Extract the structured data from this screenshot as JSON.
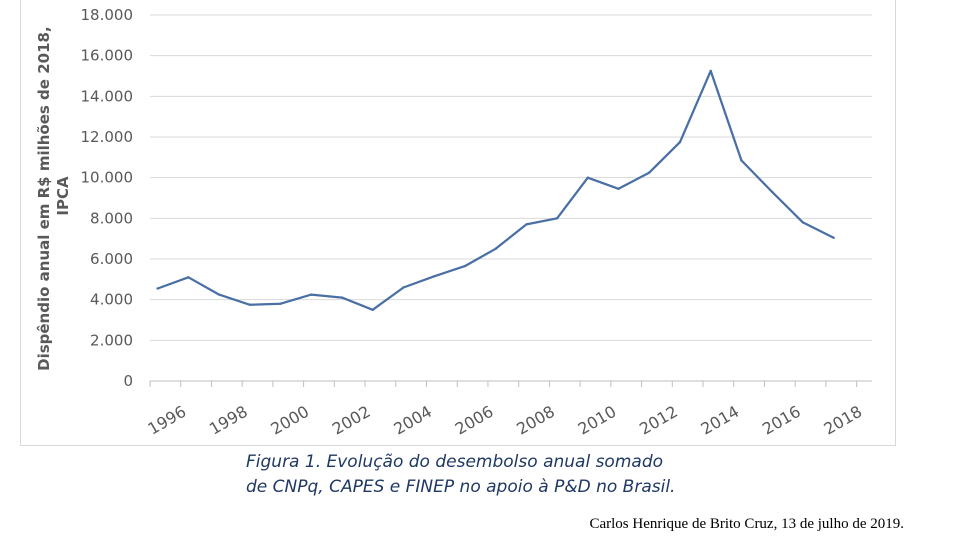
{
  "chart_data": {
    "type": "line",
    "title": "",
    "xlabel": "",
    "ylabel_lines": [
      "Dispêndio anual em R$ milhões de 2018,",
      "IPCA"
    ],
    "ylim": [
      0,
      18000
    ],
    "yticks": [
      0,
      2000,
      4000,
      6000,
      8000,
      10000,
      12000,
      14000,
      16000,
      18000
    ],
    "ytick_labels": [
      "0",
      "2.000",
      "4.000",
      "6.000",
      "8.000",
      "10.000",
      "12.000",
      "14.000",
      "16.000",
      "18.000"
    ],
    "xlim": [
      1995.75,
      2019.25
    ],
    "xtick_labels": [
      "1996",
      "1998",
      "2000",
      "2002",
      "2004",
      "2006",
      "2008",
      "2010",
      "2012",
      "2014",
      "2016",
      "2018"
    ],
    "grid": "horizontal",
    "line_color": "#4a6fa5",
    "series": [
      {
        "x": [
          1996,
          1997,
          1998,
          1999,
          2000,
          2001,
          2002,
          2003,
          2004,
          2005,
          2006,
          2007,
          2008,
          2009,
          2010,
          2011,
          2012,
          2013,
          2014,
          2015,
          2016,
          2017,
          2018
        ],
        "values": [
          4550,
          5100,
          4250,
          3750,
          3800,
          4250,
          4100,
          3500,
          4600,
          5150,
          5650,
          6500,
          7700,
          8000,
          10000,
          9450,
          10250,
          11750,
          15250,
          10850,
          9300,
          7800,
          7050
        ]
      }
    ]
  },
  "caption": {
    "line1": "Figura 1. Evolução do desembolso anual somado",
    "line2": "de CNPq, CAPES e FINEP no apoio à P&D no Brasil."
  },
  "credit": "Carlos Henrique de Brito Cruz, 13 de julho de 2019."
}
